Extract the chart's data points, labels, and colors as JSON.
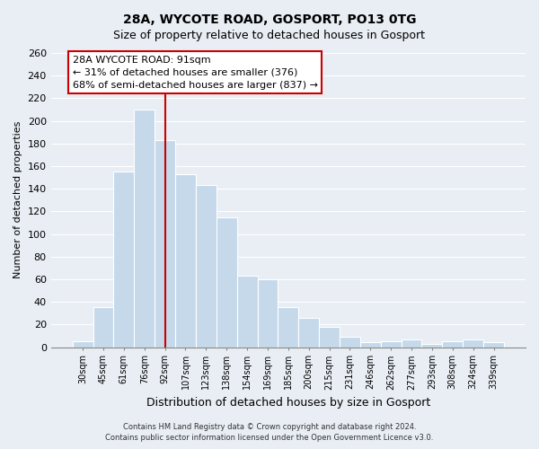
{
  "title": "28A, WYCOTE ROAD, GOSPORT, PO13 0TG",
  "subtitle": "Size of property relative to detached houses in Gosport",
  "xlabel": "Distribution of detached houses by size in Gosport",
  "ylabel": "Number of detached properties",
  "categories": [
    "30sqm",
    "45sqm",
    "61sqm",
    "76sqm",
    "92sqm",
    "107sqm",
    "123sqm",
    "138sqm",
    "154sqm",
    "169sqm",
    "185sqm",
    "200sqm",
    "215sqm",
    "231sqm",
    "246sqm",
    "262sqm",
    "277sqm",
    "293sqm",
    "308sqm",
    "324sqm",
    "339sqm"
  ],
  "values": [
    5,
    35,
    155,
    210,
    183,
    153,
    143,
    115,
    63,
    60,
    35,
    26,
    18,
    9,
    4,
    5,
    7,
    3,
    5,
    7,
    4
  ],
  "bar_color": "#c5d9ea",
  "vline_x_index": 4,
  "vline_color": "#cc0000",
  "annotation_title": "28A WYCOTE ROAD: 91sqm",
  "annotation_line1": "← 31% of detached houses are smaller (376)",
  "annotation_line2": "68% of semi-detached houses are larger (837) →",
  "annotation_box_color": "#ffffff",
  "annotation_box_edge_color": "#cc0000",
  "ylim": [
    0,
    260
  ],
  "yticks": [
    0,
    20,
    40,
    60,
    80,
    100,
    120,
    140,
    160,
    180,
    200,
    220,
    240,
    260
  ],
  "footer_line1": "Contains HM Land Registry data © Crown copyright and database right 2024.",
  "footer_line2": "Contains public sector information licensed under the Open Government Licence v3.0.",
  "bg_color": "#e8eef4",
  "plot_bg_color": "#e8eef4",
  "title_fontsize": 10,
  "subtitle_fontsize": 9,
  "ylabel_fontsize": 8,
  "xlabel_fontsize": 9,
  "tick_fontsize": 8,
  "annotation_fontsize": 8
}
